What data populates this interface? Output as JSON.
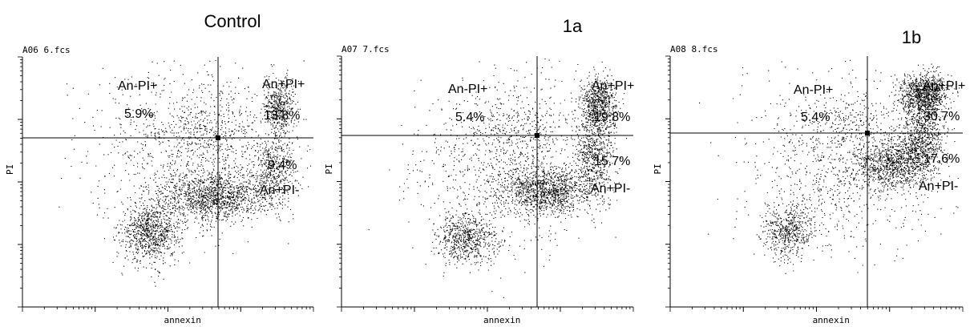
{
  "chart_data": [
    {
      "type": "scatter",
      "title": "Control",
      "file_label": "A06 6.fcs",
      "xlabel": "annexin",
      "ylabel": "PI",
      "scale": "log",
      "quadrant_labels": {
        "upper_left": {
          "name": "An-PI+",
          "percent": "5.9%"
        },
        "upper_right": {
          "name": "An+PI+",
          "percent": "13.8%"
        },
        "lower_right": {
          "name": "An+PI-",
          "percent": "9.4%"
        }
      },
      "clusters": [
        {
          "cx": 0.44,
          "cy": 0.3,
          "sx": 0.05,
          "sy": 0.06,
          "n": 900
        },
        {
          "cx": 0.66,
          "cy": 0.44,
          "sx": 0.09,
          "sy": 0.045,
          "n": 1200
        },
        {
          "cx": 0.86,
          "cy": 0.55,
          "sx": 0.035,
          "sy": 0.08,
          "n": 500
        },
        {
          "cx": 0.88,
          "cy": 0.8,
          "sx": 0.025,
          "sy": 0.05,
          "n": 450
        },
        {
          "cx": 0.6,
          "cy": 0.62,
          "sx": 0.17,
          "sy": 0.17,
          "n": 1200
        },
        {
          "cx": 0.62,
          "cy": 0.72,
          "sx": 0.08,
          "sy": 0.05,
          "n": 150
        }
      ]
    },
    {
      "type": "scatter",
      "title": "1a",
      "file_label": "A07 7.fcs",
      "xlabel": "annexin",
      "ylabel": "PI",
      "scale": "log",
      "quadrant_labels": {
        "upper_left": {
          "name": "An-PI+",
          "percent": "5.4%"
        },
        "upper_right": {
          "name": "An+PI+",
          "percent": "19.8%"
        },
        "lower_right": {
          "name": "An+PI-",
          "percent": "15.7%"
        }
      },
      "clusters": [
        {
          "cx": 0.43,
          "cy": 0.27,
          "sx": 0.05,
          "sy": 0.05,
          "n": 650
        },
        {
          "cx": 0.7,
          "cy": 0.46,
          "sx": 0.08,
          "sy": 0.045,
          "n": 1100
        },
        {
          "cx": 0.86,
          "cy": 0.6,
          "sx": 0.035,
          "sy": 0.09,
          "n": 650
        },
        {
          "cx": 0.88,
          "cy": 0.8,
          "sx": 0.03,
          "sy": 0.055,
          "n": 700
        },
        {
          "cx": 0.58,
          "cy": 0.58,
          "sx": 0.16,
          "sy": 0.17,
          "n": 1100
        },
        {
          "cx": 0.62,
          "cy": 0.73,
          "sx": 0.07,
          "sy": 0.05,
          "n": 120
        }
      ]
    },
    {
      "type": "scatter",
      "title": "1b",
      "file_label": "A08 8.fcs",
      "xlabel": "annexin",
      "ylabel": "PI",
      "scale": "log",
      "quadrant_labels": {
        "upper_left": {
          "name": "An-PI+",
          "percent": "5.4%"
        },
        "upper_right": {
          "name": "An+PI+",
          "percent": "30.7%"
        },
        "lower_right": {
          "name": "An+PI-",
          "percent": "17.6%"
        }
      },
      "clusters": [
        {
          "cx": 0.4,
          "cy": 0.3,
          "sx": 0.045,
          "sy": 0.055,
          "n": 550
        },
        {
          "cx": 0.76,
          "cy": 0.57,
          "sx": 0.07,
          "sy": 0.05,
          "n": 1000
        },
        {
          "cx": 0.86,
          "cy": 0.68,
          "sx": 0.035,
          "sy": 0.08,
          "n": 800
        },
        {
          "cx": 0.87,
          "cy": 0.85,
          "sx": 0.04,
          "sy": 0.04,
          "n": 1000
        },
        {
          "cx": 0.58,
          "cy": 0.58,
          "sx": 0.16,
          "sy": 0.17,
          "n": 1000
        },
        {
          "cx": 0.62,
          "cy": 0.76,
          "sx": 0.07,
          "sy": 0.04,
          "n": 100
        }
      ]
    }
  ]
}
